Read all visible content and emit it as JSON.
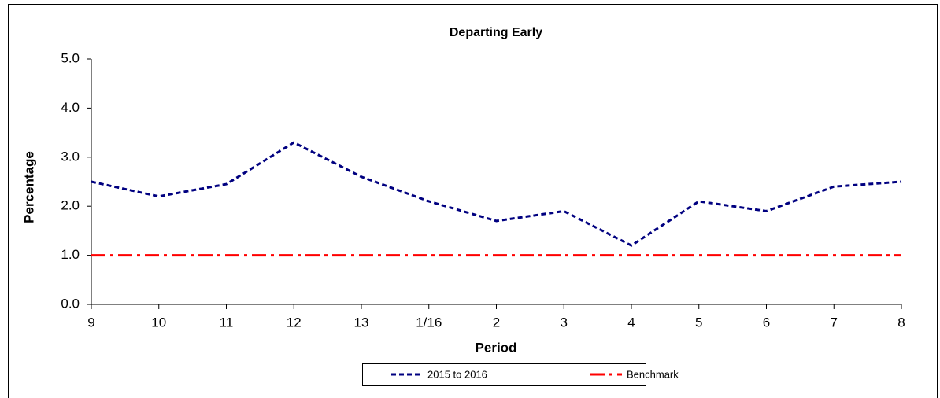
{
  "chart_data": {
    "type": "line",
    "title": "Departing Early",
    "x_label": "Period",
    "y_label": "Percentage",
    "categories": [
      "9",
      "10",
      "11",
      "12",
      "13",
      "1/16",
      "2",
      "3",
      "4",
      "5",
      "6",
      "7",
      "8"
    ],
    "series": [
      {
        "name": "2015 to 2016",
        "color": "#000080",
        "style": "dashed",
        "values": [
          2.5,
          2.2,
          2.45,
          3.3,
          2.6,
          2.1,
          1.7,
          1.9,
          1.2,
          2.1,
          1.9,
          2.4,
          2.5
        ]
      },
      {
        "name": "Benchmark",
        "color": "#ff0000",
        "style": "dashdot",
        "values": [
          1.0,
          1.0,
          1.0,
          1.0,
          1.0,
          1.0,
          1.0,
          1.0,
          1.0,
          1.0,
          1.0,
          1.0,
          1.0
        ]
      }
    ],
    "ylim": [
      0,
      5
    ],
    "yticks": [
      {
        "value": 0,
        "label": "0.0"
      },
      {
        "value": 1,
        "label": "1.0"
      },
      {
        "value": 2,
        "label": "2.0"
      },
      {
        "value": 3,
        "label": "3.0"
      },
      {
        "value": 4,
        "label": "4.0"
      },
      {
        "value": 5,
        "label": "5.0"
      }
    ],
    "grid": false,
    "legend": "bottom"
  }
}
